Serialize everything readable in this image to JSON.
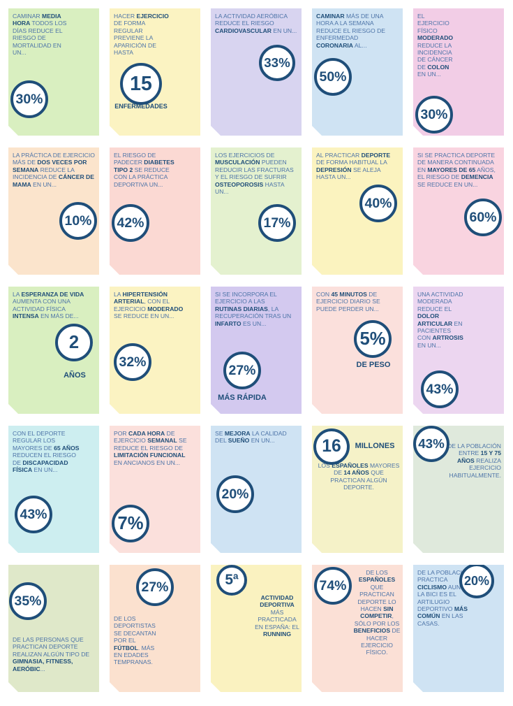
{
  "cards": [
    {
      "color": "#d9efc0",
      "stat": "30%",
      "text": [
        {
          "text": "CAMINAR "
        },
        {
          "text": "MEDIA HORA",
          "bold": true
        },
        {
          "text": " TODOS LOS DÍAS REDUCE EL RIESGO DE MORTALIDAD EN UN..."
        }
      ]
    },
    {
      "color": "#fbf3c2",
      "stat": "15",
      "caption": "ENFERMEDADES",
      "text": [
        {
          "text": "HACER "
        },
        {
          "text": "EJERCICIO",
          "bold": true
        },
        {
          "text": " DE FORMA REGULAR PREVIENE LA APARICIÓN DE HASTA"
        }
      ]
    },
    {
      "color": "#d8d4f0",
      "stat": "33%",
      "text": [
        {
          "text": "LA ACTIVIDAD AERÓBICA REDUCE EL RIESGO "
        },
        {
          "text": "CARDIOVASCULAR",
          "bold": true
        },
        {
          "text": " EN UN..."
        }
      ]
    },
    {
      "color": "#cfe3f3",
      "stat": "50%",
      "text": [
        {
          "text": "CAMINAR",
          "bold": true
        },
        {
          "text": " MÁS DE UNA HORA A LA SEMANA REDUCE EL RIESGO DE ENFERMEDAD "
        },
        {
          "text": "CORONARIA",
          "bold": true
        },
        {
          "text": " AL..."
        }
      ]
    },
    {
      "color": "#f2cde6",
      "stat": "30%",
      "text": [
        {
          "text": "EL EJERCICIO FÍSICO "
        },
        {
          "text": "MODERADO",
          "bold": true
        },
        {
          "text": " REDUCE LA INCIDENCIA DE CÁNCER DE "
        },
        {
          "text": "COLON",
          "bold": true
        },
        {
          "text": " EN UN..."
        }
      ]
    },
    {
      "color": "#fbe4cc",
      "stat": "10%",
      "text": [
        {
          "text": "LA PRÁCTICA DE EJERCICIO MÁS DE "
        },
        {
          "text": "DOS VECES POR SEMANA",
          "bold": true
        },
        {
          "text": " REDUCE LA INCIDENCIA DE "
        },
        {
          "text": "CÁNCER DE MAMA",
          "bold": true
        },
        {
          "text": " EN UN..."
        }
      ]
    },
    {
      "color": "#fbd9d3",
      "stat": "42%",
      "text": [
        {
          "text": "EL RIESGO DE PADECER "
        },
        {
          "text": "DIABETES TIPO 2",
          "bold": true
        },
        {
          "text": " SE REDUCE CON LA PRÁCTICA DEPORTIVA UN..."
        }
      ]
    },
    {
      "color": "#e4f1cf",
      "stat": "17%",
      "text": [
        {
          "text": "LOS EJERCICIOS DE "
        },
        {
          "text": "MUSCULACIÓN",
          "bold": true
        },
        {
          "text": " PUEDEN REDUCIR LAS FRACTURAS Y EL RIESGO DE SUFRIR "
        },
        {
          "text": "OSTEOPOROSIS",
          "bold": true
        },
        {
          "text": " HASTA UN..."
        }
      ]
    },
    {
      "color": "#fbf3bf",
      "stat": "40%",
      "text": [
        {
          "text": "AL PRACTICAR "
        },
        {
          "text": "DEPORTE",
          "bold": true
        },
        {
          "text": " DE FORMA HABITUAL LA "
        },
        {
          "text": "DEPRESIÓN",
          "bold": true
        },
        {
          "text": " SE ALEJA HASTA UN..."
        }
      ]
    },
    {
      "color": "#f9d4e0",
      "stat": "60%",
      "text": [
        {
          "text": "SI SE PRACTICA DEPORTE DE MANERA CONTINUADA EN "
        },
        {
          "text": "MAYORES DE 65",
          "bold": true
        },
        {
          "text": " AÑOS, EL RIESGO DE "
        },
        {
          "text": "DEMENCIA",
          "bold": true
        },
        {
          "text": " SE REDUCE EN UN..."
        }
      ]
    },
    {
      "color": "#d9efc0",
      "stat": "2",
      "caption": "AÑOS",
      "text": [
        {
          "text": "LA "
        },
        {
          "text": "ESPERANZA DE VIDA",
          "bold": true
        },
        {
          "text": " AUMENTA CON UNA ACTIVIDAD FÍSICA "
        },
        {
          "text": "INTENSA",
          "bold": true
        },
        {
          "text": " EN MÁS DE..."
        }
      ]
    },
    {
      "color": "#fbf3c2",
      "stat": "32%",
      "text": [
        {
          "text": "LA "
        },
        {
          "text": "HIPERTENSIÓN ARTERIAL",
          "bold": true
        },
        {
          "text": ", CON EL EJERCICIO "
        },
        {
          "text": "MODERADO",
          "bold": true
        },
        {
          "text": " SE REDUCE EN UN..."
        }
      ]
    },
    {
      "color": "#d3c9ef",
      "stat": "27%",
      "caption": "MÁS RÁPIDA",
      "text": [
        {
          "text": "SI SE INCORPORA EL EJERCICIO A LAS "
        },
        {
          "text": "RUTINAS DIARIAS",
          "bold": true
        },
        {
          "text": ", LA RECUPERACIÓN TRAS UN "
        },
        {
          "text": "INFARTO",
          "bold": true
        },
        {
          "text": " ES UN..."
        }
      ]
    },
    {
      "color": "#fbe0dc",
      "stat": "5%",
      "caption": "DE PESO",
      "text": [
        {
          "text": "CON "
        },
        {
          "text": "45 MINUTOS",
          "bold": true
        },
        {
          "text": " DE EJERCICIO DIARIO SE PUEDE PERDER UN..."
        }
      ]
    },
    {
      "color": "#ecd6f0",
      "stat": "43%",
      "text": [
        {
          "text": "UNA ACTIVIDAD MODERADA REDUCE EL "
        },
        {
          "text": "DOLOR ARTICULAR",
          "bold": true
        },
        {
          "text": " EN PACIENTES CON "
        },
        {
          "text": "ARTROSIS",
          "bold": true
        },
        {
          "text": " EN UN..."
        }
      ]
    },
    {
      "color": "#cdeef0",
      "stat": "43%",
      "text": [
        {
          "text": "CON EL DEPORTE REGULAR LOS MAYORES DE "
        },
        {
          "text": "65 AÑOS",
          "bold": true
        },
        {
          "text": " REDUCEN EL RIESGO DE "
        },
        {
          "text": "DISCAPACIDAD FÍSICA",
          "bold": true
        },
        {
          "text": " EN UN..."
        }
      ]
    },
    {
      "color": "#fbe0dc",
      "stat": "7%",
      "text": [
        {
          "text": "POR "
        },
        {
          "text": "CADA HORA",
          "bold": true
        },
        {
          "text": " DE EJERCICIO "
        },
        {
          "text": "SEMANAL",
          "bold": true
        },
        {
          "text": " SE REDUCE EL RIESGO DE "
        },
        {
          "text": "LIMITACIÓN FUNCIONAL",
          "bold": true
        },
        {
          "text": " EN ANCIANOS EN UN..."
        }
      ]
    },
    {
      "color": "#cfe3f3",
      "stat": "20%",
      "text": [
        {
          "text": "SE "
        },
        {
          "text": "MEJORA",
          "bold": true
        },
        {
          "text": " LA CALIDAD DEL "
        },
        {
          "text": "SUEÑO",
          "bold": true
        },
        {
          "text": " EN UN..."
        }
      ]
    },
    {
      "color": "#f5f2c8",
      "stat": "16",
      "caption": "MILLONES",
      "text": [
        {
          "text": "LOS "
        },
        {
          "text": "ESPAÑOLES",
          "bold": true
        },
        {
          "text": " MAYORES DE "
        },
        {
          "text": "14 AÑOS",
          "bold": true
        },
        {
          "text": " QUE PRACTICAN ALGÚN DEPORTE."
        }
      ]
    },
    {
      "color": "#dfe9dc",
      "stat": "43%",
      "text": [
        {
          "text": "DE LA POBLACIÓN ENTRE "
        },
        {
          "text": "15 Y 75 AÑOS",
          "bold": true
        },
        {
          "text": " REALIZA EJERCICIO HABITUALMENTE."
        }
      ]
    },
    {
      "color": "#dfe8c9",
      "stat": "35%",
      "text": [
        {
          "text": "DE LAS PERSONAS QUE PRACTICAN DEPORTE REALIZAN ALGÚN TIPO DE "
        },
        {
          "text": "GIMNASIA, FITNESS, AERÓBIC",
          "bold": true
        },
        {
          "text": "..."
        }
      ]
    },
    {
      "color": "#fbe1cf",
      "stat": "27%",
      "text": [
        {
          "text": "DE LOS DEPORTISTAS SE DECANTAN POR EL "
        },
        {
          "text": "FÚTBOL",
          "bold": true
        },
        {
          "text": ". MÁS EN EDADES TEMPRANAS."
        }
      ]
    },
    {
      "color": "#faf2c0",
      "stat": "5ª",
      "text": [
        {
          "text": "ACTIVIDAD DEPORTIVA",
          "bold": true
        },
        {
          "text": " MÁS PRACTICADA EN ESPAÑA: EL "
        },
        {
          "text": "RUNNING",
          "bold": true
        }
      ]
    },
    {
      "color": "#fbe0d6",
      "stat": "74%",
      "text": [
        {
          "text": "DE LOS "
        },
        {
          "text": "ESPAÑOLES",
          "bold": true
        },
        {
          "text": " QUE PRACTICAN DEPORTE LO HACEN "
        },
        {
          "text": "SIN COMPETIR",
          "bold": true
        },
        {
          "text": ", SÓLO POR LOS "
        },
        {
          "text": "BENEFICIOS",
          "bold": true
        },
        {
          "text": " DE HACER EJERCICIO FÍSICO."
        }
      ]
    },
    {
      "color": "#cfe3f3",
      "stat": "20%",
      "text": [
        {
          "text": "DE LA POBLACIÓN PRACTICA "
        },
        {
          "text": "CICLISMO",
          "bold": true
        },
        {
          "text": " AUNQUE LA BICI ES EL ARTILUGIO DEPORTIVO "
        },
        {
          "text": "MÁS COMÚN",
          "bold": true
        },
        {
          "text": " EN LAS CASAS."
        }
      ]
    }
  ]
}
